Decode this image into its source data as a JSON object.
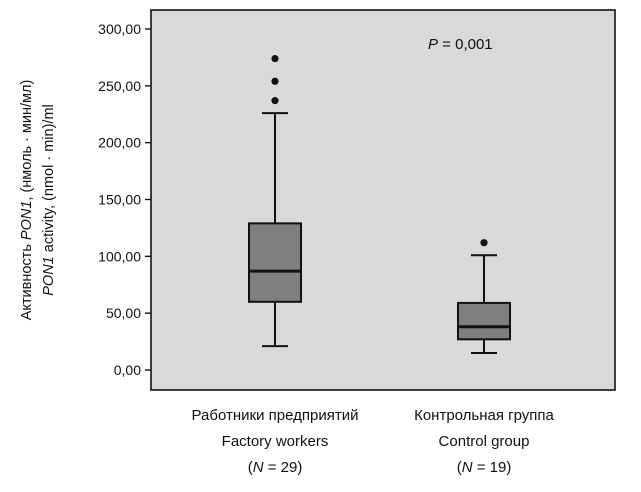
{
  "chart_data": {
    "type": "boxplot",
    "ylim": [
      0,
      300
    ],
    "y_ticks": [
      "0,00",
      "50,00",
      "100,00",
      "150,00",
      "200,00",
      "250,00",
      "300,00"
    ],
    "y_tick_values": [
      0,
      50,
      100,
      150,
      200,
      250,
      300
    ],
    "ylabel_ru": {
      "pre": "Активность ",
      "ital": "PON1",
      "post": ", (нмоль · мин/мл)"
    },
    "ylabel_en": {
      "ital": "PON1",
      "post": " activity, (nmol · min)/ml"
    },
    "annotation": {
      "ital": "P",
      "post": " = 0,001"
    },
    "background_color": "#d9d9d9",
    "box_color": "#7f7f7f",
    "groups": [
      {
        "label_ru": "Работники предприятий",
        "label_en": "Factory workers",
        "n_ital": "N",
        "n_post": " = 29",
        "whisker_low": 21,
        "q1": 60,
        "median": 87,
        "q3": 129,
        "whisker_high": 226,
        "outliers": [
          237,
          254,
          274
        ]
      },
      {
        "label_ru": "Контрольная группа",
        "label_en": "Control group",
        "n_ital": "N",
        "n_post": " = 19",
        "whisker_low": 15,
        "q1": 27,
        "median": 38,
        "q3": 59,
        "whisker_high": 101,
        "outliers": [
          112
        ]
      }
    ]
  }
}
